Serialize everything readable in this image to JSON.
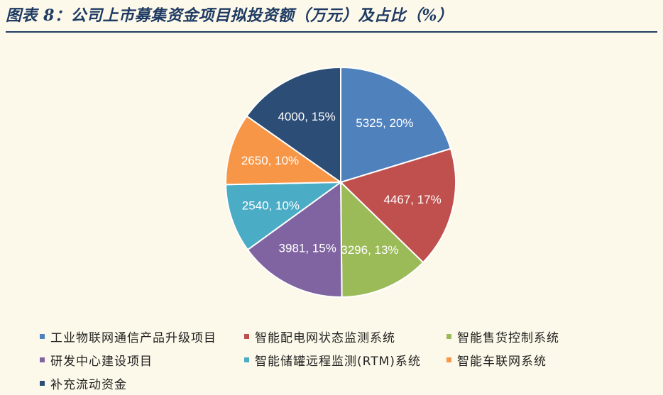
{
  "title": "图表 8：公司上市募集资金项目拟投资额（万元）及占比（%）",
  "chart_data": {
    "type": "pie",
    "slices": [
      {
        "name": "工业物联网通信产品升级项目",
        "value": 5325,
        "percent": 20,
        "label": "5325, 20%",
        "color": "#4f81bd"
      },
      {
        "name": "智能配电网状态监测系统",
        "value": 4467,
        "percent": 17,
        "label": "4467, 17%",
        "color": "#c0504d"
      },
      {
        "name": "智能售货控制系统",
        "value": 3296,
        "percent": 13,
        "label": "3296, 13%",
        "color": "#9bbb59"
      },
      {
        "name": "研发中心建设项目",
        "value": 3981,
        "percent": 15,
        "label": "3981, 15%",
        "color": "#8064a2"
      },
      {
        "name": "智能储罐远程监测(RTM)系统",
        "value": 2540,
        "percent": 10,
        "label": "2540, 10%",
        "color": "#4bacc6"
      },
      {
        "name": "智能车联网系统",
        "value": 2650,
        "percent": 10,
        "label": "2650, 10%",
        "color": "#f79646"
      },
      {
        "name": "补充流动资金",
        "value": 4000,
        "percent": 15,
        "label": "4000, 15%",
        "color": "#2c4d75"
      }
    ],
    "legend_position": "bottom"
  }
}
